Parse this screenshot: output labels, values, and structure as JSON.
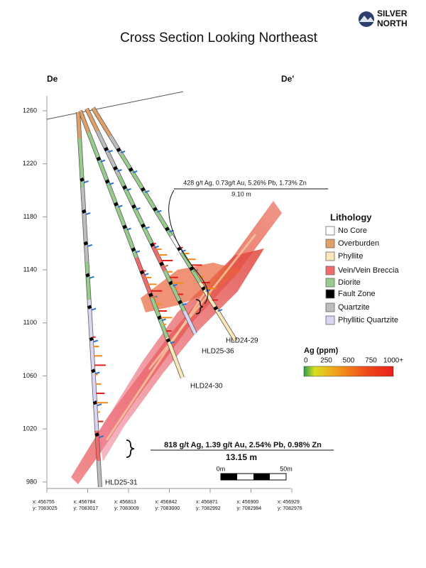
{
  "logo": {
    "line1": "SILVER",
    "line2": "NORTH"
  },
  "title": "Cross Section Looking Northeast",
  "section_ends": {
    "left": "De",
    "right": "De'"
  },
  "elevations": [
    "1260",
    "1220",
    "1180",
    "1140",
    "1100",
    "1060",
    "1020",
    "980"
  ],
  "coordinates": [
    {
      "x": "x: 456755",
      "y": "y: 7083025"
    },
    {
      "x": "x: 456784",
      "y": "y: 7083017"
    },
    {
      "x": "x: 456813",
      "y": "y: 7083009"
    },
    {
      "x": "x: 456842",
      "y": "y: 7083000"
    },
    {
      "x": "x: 456871",
      "y": "y: 7082992"
    },
    {
      "x": "x: 456900",
      "y": "y: 7082984"
    },
    {
      "x": "x: 456929",
      "y": "y: 7082976"
    }
  ],
  "intercepts": [
    {
      "text": "428 g/t Ag, 0.73g/t Au, 5.26% Pb, 1.73% Zn",
      "length": "9.10 m"
    },
    {
      "text": "818 g/t Ag, 1.39 g/t Au, 2.54% Pb, 0.98% Zn",
      "length": "13.15 m"
    }
  ],
  "drillholes": [
    "HLD24-29",
    "HLD25-36",
    "HLD24-30",
    "HLD25-31"
  ],
  "legend": {
    "title": "Lithology",
    "items": [
      {
        "label": "No Core",
        "color": "#ffffff"
      },
      {
        "label": "Overburden",
        "color": "#e0a068"
      },
      {
        "label": "Phyllite",
        "color": "#fbe7b8"
      },
      {
        "label": "Vein/Vein Breccia",
        "color": "#f26b6b"
      },
      {
        "label": "Diorite",
        "color": "#98cc8c"
      },
      {
        "label": "Fault Zone",
        "color": "#000000"
      },
      {
        "label": "Quartzite",
        "color": "#bdbdbd"
      },
      {
        "label": "Phyllitic Quartzite",
        "color": "#d9d5f2"
      }
    ]
  },
  "ag_scale": {
    "title": "Ag (ppm)",
    "labels": [
      "0",
      "250",
      "500",
      "750",
      "1000+"
    ]
  },
  "scale_bar": {
    "start": "0m",
    "end": "50m"
  }
}
